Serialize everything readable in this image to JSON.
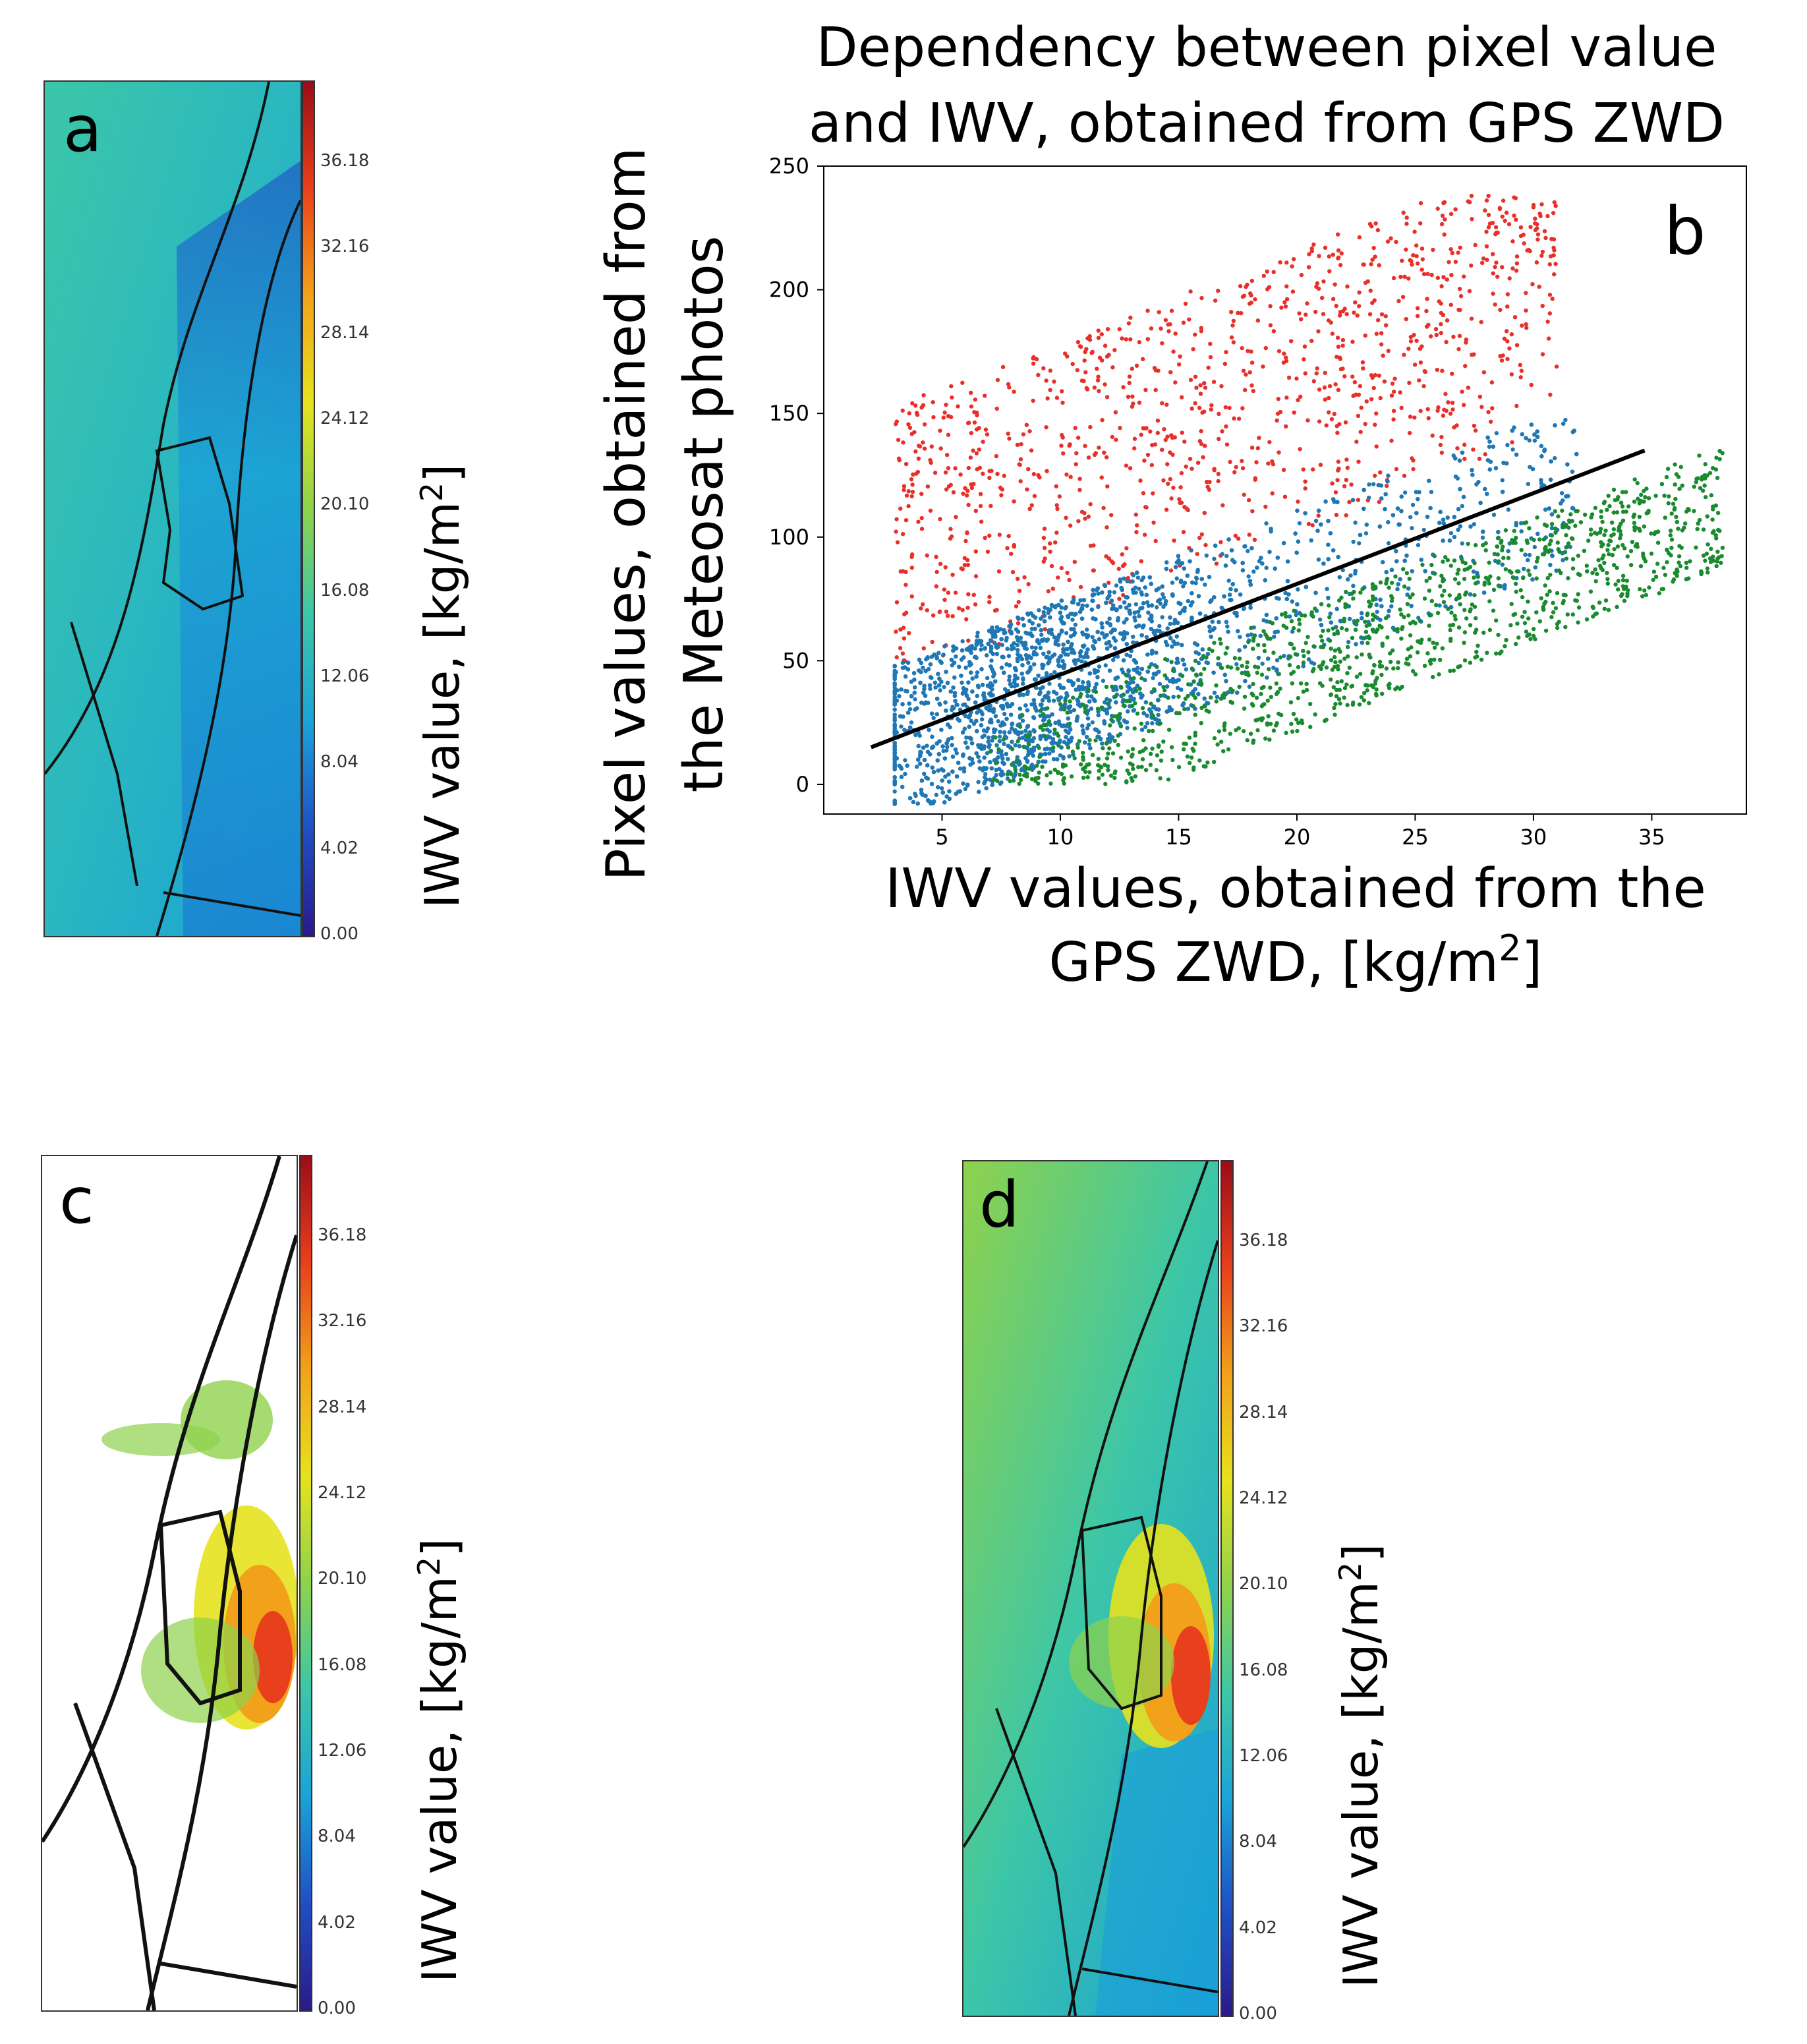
{
  "panels": {
    "a": {
      "letter": "a"
    },
    "b": {
      "letter": "b"
    },
    "c": {
      "letter": "c"
    },
    "d": {
      "letter": "d"
    }
  },
  "colorbar": {
    "ticks": [
      "36.18",
      "32.16",
      "28.14",
      "24.12",
      "20.10",
      "16.08",
      "12.06",
      "8.04",
      "4.02",
      "0.00"
    ],
    "label_main": "IWV value, [kg/m",
    "label_sup": "2",
    "label_end": "]",
    "colors": [
      "#2a1a8a",
      "#1f4fc4",
      "#1aa3d8",
      "#3cc6a8",
      "#8ed24c",
      "#e6e21e",
      "#f2a21a",
      "#e8401c",
      "#9a0d18"
    ]
  },
  "chart_data": {
    "type": "scatter",
    "title_line1": "Dependency between pixel value",
    "title_line2": "and IWV, obtained from GPS ZWD",
    "xlabel_line1": "IWV values, obtained from the",
    "xlabel_line2_main": "GPS ZWD, [kg/m",
    "xlabel_line2_sup": "2",
    "xlabel_line2_end": "]",
    "ylabel_line1": "Pixel values, obtained from",
    "ylabel_line2": "the Meteosat photos",
    "xlim": [
      0,
      39
    ],
    "ylim": [
      -12,
      250
    ],
    "xticks": [
      5,
      10,
      15,
      20,
      25,
      30,
      35
    ],
    "yticks": [
      0,
      50,
      100,
      150,
      200,
      250
    ],
    "grid": false,
    "fit_line": {
      "x": [
        2,
        34.7
      ],
      "y": [
        15,
        135
      ],
      "color": "#000000"
    },
    "series_colors": {
      "upper": "#e8302a",
      "middle": "#1f77b4",
      "lower": "#1a8a2e"
    },
    "clusters": [
      {
        "series": "upper",
        "count": 1100,
        "x": [
          3,
          31
        ],
        "y_offset_above_fit": [
          20,
          135
        ]
      },
      {
        "series": "middle",
        "count": 4200,
        "x": [
          3,
          32
        ],
        "y_offset_around_fit": [
          -35,
          30
        ]
      },
      {
        "series": "lower",
        "count": 1200,
        "x": [
          7,
          38
        ],
        "y_offset_below_fit": [
          -60,
          -10
        ]
      }
    ]
  }
}
